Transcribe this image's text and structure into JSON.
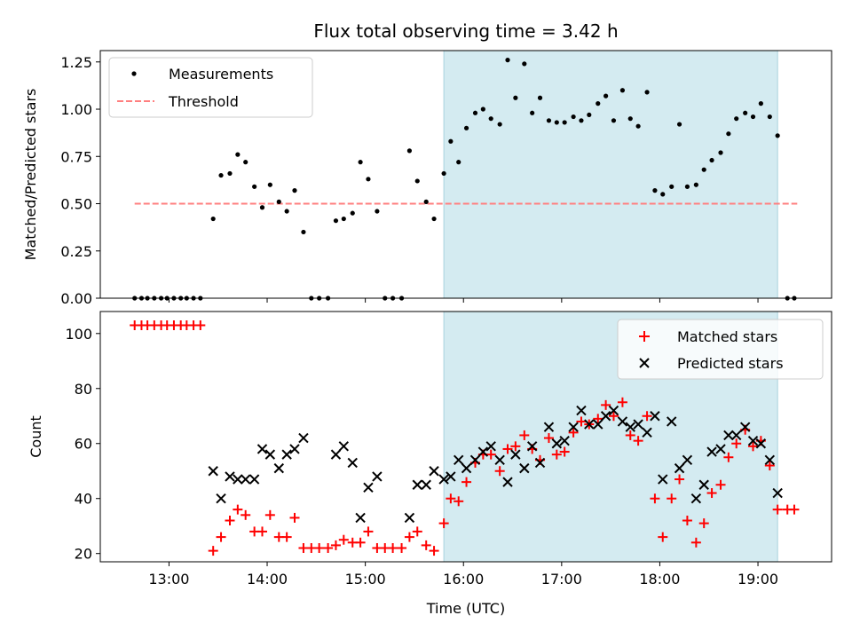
{
  "colors": {
    "shade": "#d4ebf1",
    "shade_edge": "#a9d3de",
    "matched": "#ff0000",
    "predicted": "#000000",
    "threshold": "#ff7f7f",
    "measurements": "#000000"
  },
  "chart_data": [
    {
      "type": "scatter",
      "title": "Flux total observing time = 3.42 h",
      "xlabel": "",
      "ylabel": "Matched/Predicted stars",
      "xlim": [
        12.3,
        19.75
      ],
      "ylim": [
        0,
        1.31
      ],
      "yticks": [
        0,
        0.25,
        0.5,
        0.75,
        1.0,
        1.25
      ],
      "ytick_labels": [
        "0.00",
        "0.25",
        "0.50",
        "0.75",
        "1.00",
        "1.25"
      ],
      "xticks": [
        13,
        14,
        15,
        16,
        17,
        18,
        19
      ],
      "shaded_region": [
        15.8,
        19.2
      ],
      "legend": {
        "position": "upper-left",
        "entries": [
          "Measurements",
          "Threshold"
        ]
      },
      "threshold": {
        "name": "Threshold",
        "y": 0.5,
        "x_range": [
          12.65,
          19.4
        ],
        "style": "dashed"
      },
      "series": [
        {
          "name": "Measurements",
          "marker": "dot",
          "x": [
            12.65,
            12.72,
            12.78,
            12.85,
            12.92,
            12.98,
            13.05,
            13.12,
            13.18,
            13.25,
            13.32,
            13.45,
            13.53,
            13.62,
            13.7,
            13.78,
            13.87,
            13.95,
            14.03,
            14.12,
            14.2,
            14.28,
            14.37,
            14.45,
            14.53,
            14.62,
            14.7,
            14.78,
            14.87,
            14.95,
            15.03,
            15.12,
            15.2,
            15.28,
            15.37,
            15.45,
            15.53,
            15.62,
            15.7,
            15.8,
            15.87,
            15.95,
            16.03,
            16.12,
            16.2,
            16.28,
            16.37,
            16.45,
            16.53,
            16.62,
            16.7,
            16.78,
            16.87,
            16.95,
            17.03,
            17.12,
            17.2,
            17.28,
            17.37,
            17.45,
            17.53,
            17.62,
            17.7,
            17.78,
            17.87,
            17.95,
            18.03,
            18.12,
            18.2,
            18.28,
            18.37,
            18.45,
            18.53,
            18.62,
            18.7,
            18.78,
            18.87,
            18.95,
            19.03,
            19.12,
            19.2,
            19.3,
            19.37
          ],
          "y": [
            0,
            0,
            0,
            0,
            0,
            0,
            0,
            0,
            0,
            0,
            0,
            0.42,
            0.65,
            0.66,
            0.76,
            0.72,
            0.59,
            0.48,
            0.6,
            0.51,
            0.46,
            0.57,
            0.35,
            0,
            0,
            0,
            0.41,
            0.42,
            0.45,
            0.72,
            0.63,
            0.46,
            0,
            0,
            0,
            0.78,
            0.62,
            0.51,
            0.42,
            0.66,
            0.83,
            0.72,
            0.9,
            0.98,
            1.0,
            0.95,
            0.92,
            1.26,
            1.06,
            1.24,
            0.98,
            1.06,
            0.94,
            0.93,
            0.93,
            0.96,
            0.94,
            0.97,
            1.03,
            1.07,
            0.94,
            1.1,
            0.95,
            0.91,
            1.09,
            0.57,
            0.55,
            0.59,
            0.92,
            0.59,
            0.6,
            0.68,
            0.73,
            0.77,
            0.87,
            0.95,
            0.98,
            0.96,
            1.03,
            0.96,
            0.86,
            0,
            0
          ]
        }
      ]
    },
    {
      "type": "scatter",
      "title": "",
      "xlabel": "Time (UTC)",
      "ylabel": "Count",
      "xlim": [
        12.3,
        19.75
      ],
      "ylim": [
        17,
        108
      ],
      "yticks": [
        20,
        40,
        60,
        80,
        100
      ],
      "ytick_labels": [
        "20",
        "40",
        "60",
        "80",
        "100"
      ],
      "xticks": [
        13,
        14,
        15,
        16,
        17,
        18,
        19
      ],
      "xtick_labels": [
        "13:00",
        "14:00",
        "15:00",
        "16:00",
        "17:00",
        "18:00",
        "19:00"
      ],
      "shaded_region": [
        15.8,
        19.2
      ],
      "legend": {
        "position": "upper-right",
        "entries": [
          "Matched stars",
          "Predicted stars"
        ]
      },
      "series": [
        {
          "name": "Matched stars",
          "marker": "plus",
          "x": [
            12.65,
            12.72,
            12.78,
            12.85,
            12.92,
            12.98,
            13.05,
            13.12,
            13.18,
            13.25,
            13.32,
            13.45,
            13.53,
            13.62,
            13.7,
            13.78,
            13.87,
            13.95,
            14.03,
            14.12,
            14.2,
            14.28,
            14.37,
            14.45,
            14.53,
            14.62,
            14.7,
            14.78,
            14.87,
            14.95,
            15.03,
            15.12,
            15.2,
            15.28,
            15.37,
            15.45,
            15.53,
            15.62,
            15.7,
            15.8,
            15.87,
            15.95,
            16.03,
            16.12,
            16.2,
            16.28,
            16.37,
            16.45,
            16.53,
            16.62,
            16.7,
            16.78,
            16.87,
            16.95,
            17.03,
            17.12,
            17.2,
            17.28,
            17.37,
            17.45,
            17.53,
            17.62,
            17.7,
            17.78,
            17.87,
            17.95,
            18.03,
            18.12,
            18.2,
            18.28,
            18.37,
            18.45,
            18.53,
            18.62,
            18.7,
            18.78,
            18.87,
            18.95,
            19.03,
            19.12,
            19.2,
            19.3,
            19.37
          ],
          "y": [
            103,
            103,
            103,
            103,
            103,
            103,
            103,
            103,
            103,
            103,
            103,
            21,
            26,
            32,
            36,
            34,
            28,
            28,
            34,
            26,
            26,
            33,
            22,
            22,
            22,
            22,
            23,
            25,
            24,
            24,
            28,
            22,
            22,
            22,
            22,
            26,
            28,
            23,
            21,
            31,
            40,
            39,
            46,
            53,
            56,
            56,
            50,
            58,
            59,
            63,
            58,
            54,
            62,
            56,
            57,
            64,
            68,
            67,
            69,
            74,
            70,
            75,
            63,
            61,
            70,
            40,
            26,
            40,
            47,
            32,
            24,
            31,
            42,
            45,
            55,
            60,
            65,
            59,
            61,
            52,
            36,
            36,
            36
          ]
        },
        {
          "name": "Predicted stars",
          "marker": "x",
          "x": [
            13.45,
            13.53,
            13.62,
            13.7,
            13.78,
            13.87,
            13.95,
            14.03,
            14.12,
            14.2,
            14.28,
            14.37,
            14.7,
            14.78,
            14.87,
            14.95,
            15.03,
            15.12,
            15.45,
            15.53,
            15.62,
            15.7,
            15.8,
            15.87,
            15.95,
            16.03,
            16.12,
            16.2,
            16.28,
            16.37,
            16.45,
            16.53,
            16.62,
            16.7,
            16.78,
            16.87,
            16.95,
            17.03,
            17.12,
            17.2,
            17.28,
            17.37,
            17.45,
            17.53,
            17.62,
            17.7,
            17.78,
            17.87,
            17.95,
            18.03,
            18.12,
            18.2,
            18.28,
            18.37,
            18.45,
            18.53,
            18.62,
            18.7,
            18.78,
            18.87,
            18.95,
            19.03,
            19.12,
            19.2
          ],
          "y": [
            50,
            40,
            48,
            47,
            47,
            47,
            58,
            56,
            51,
            56,
            58,
            62,
            56,
            59,
            53,
            33,
            44,
            48,
            33,
            45,
            45,
            50,
            47,
            48,
            54,
            51,
            54,
            57,
            59,
            54,
            46,
            56,
            51,
            59,
            53,
            66,
            60,
            61,
            66,
            72,
            67,
            67,
            70,
            72,
            68,
            66,
            67,
            64,
            70,
            47,
            68,
            51,
            54,
            40,
            45,
            57,
            58,
            63,
            63,
            66,
            61,
            60,
            54,
            42
          ]
        }
      ]
    }
  ]
}
